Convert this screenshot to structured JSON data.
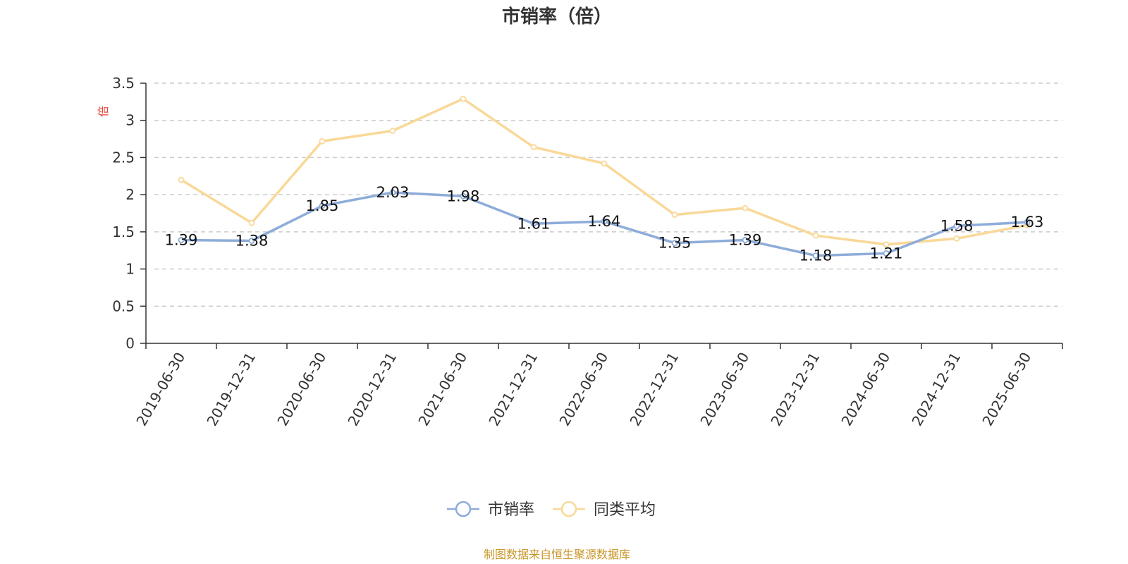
{
  "chart_data": {
    "type": "line",
    "title": "市销率（倍）",
    "ylabel": "倍",
    "xlabel": "",
    "ylim": [
      0,
      3.5
    ],
    "y_ticks": [
      "0",
      "0.5",
      "1",
      "1.5",
      "2",
      "2.5",
      "3",
      "3.5"
    ],
    "y_tick_values": [
      0,
      0.5,
      1,
      1.5,
      2,
      2.5,
      3,
      3.5
    ],
    "grid": "horizontal-dashed",
    "legend_position": "bottom-center",
    "categories": [
      "2019-06-30",
      "2019-12-31",
      "2020-06-30",
      "2020-12-31",
      "2021-06-30",
      "2021-12-31",
      "2022-06-30",
      "2022-12-31",
      "2023-06-30",
      "2023-12-31",
      "2024-06-30",
      "2024-12-31",
      "2025-06-30"
    ],
    "series": [
      {
        "name": "市销率",
        "color": "#8eacd9",
        "show_labels": true,
        "labels": [
          "1.39",
          "1.38",
          "1.85",
          "2.03",
          "1.98",
          "1.61",
          "1.64",
          "1.35",
          "1.39",
          "1.18",
          "1.21",
          "1.58",
          "1.63"
        ],
        "values": [
          1.39,
          1.38,
          1.85,
          2.03,
          1.98,
          1.61,
          1.64,
          1.35,
          1.39,
          1.18,
          1.21,
          1.58,
          1.63
        ]
      },
      {
        "name": "同类平均",
        "color": "#f9d898",
        "show_labels": false,
        "values": [
          2.2,
          1.62,
          2.72,
          2.86,
          3.29,
          2.64,
          2.42,
          1.73,
          1.82,
          1.45,
          1.33,
          1.41,
          1.59
        ]
      }
    ],
    "source": "制图数据来自恒生聚源数据库"
  }
}
